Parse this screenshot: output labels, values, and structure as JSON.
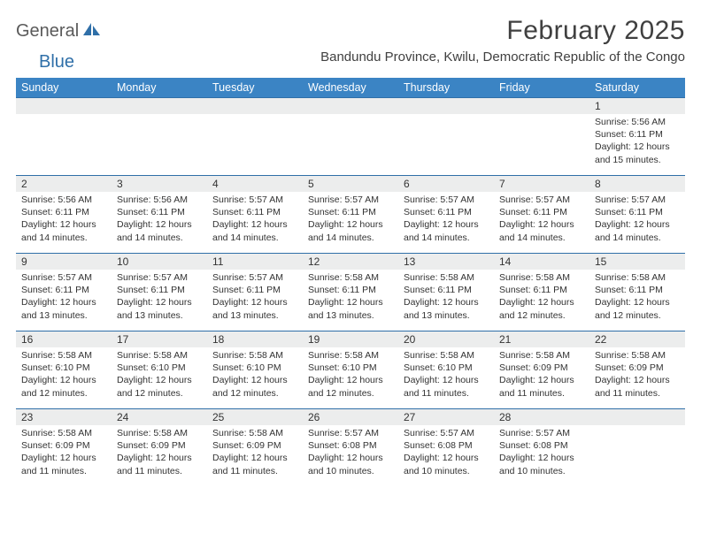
{
  "brand": {
    "part1": "General",
    "part2": "Blue"
  },
  "title": "February 2025",
  "location": "Bandundu Province, Kwilu, Democratic Republic of the Congo",
  "colors": {
    "header_bg": "#3b84c4",
    "header_text": "#ffffff",
    "row_border": "#2f6fa8",
    "daynum_bg": "#eceded",
    "text": "#333333",
    "brand_gray": "#5a5a5a",
    "brand_blue": "#2f6fa8"
  },
  "day_labels": [
    "Sunday",
    "Monday",
    "Tuesday",
    "Wednesday",
    "Thursday",
    "Friday",
    "Saturday"
  ],
  "weeks": [
    [
      null,
      null,
      null,
      null,
      null,
      null,
      {
        "n": "1",
        "sunrise": "5:56 AM",
        "sunset": "6:11 PM",
        "daylight": "12 hours and 15 minutes."
      }
    ],
    [
      {
        "n": "2",
        "sunrise": "5:56 AM",
        "sunset": "6:11 PM",
        "daylight": "12 hours and 14 minutes."
      },
      {
        "n": "3",
        "sunrise": "5:56 AM",
        "sunset": "6:11 PM",
        "daylight": "12 hours and 14 minutes."
      },
      {
        "n": "4",
        "sunrise": "5:57 AM",
        "sunset": "6:11 PM",
        "daylight": "12 hours and 14 minutes."
      },
      {
        "n": "5",
        "sunrise": "5:57 AM",
        "sunset": "6:11 PM",
        "daylight": "12 hours and 14 minutes."
      },
      {
        "n": "6",
        "sunrise": "5:57 AM",
        "sunset": "6:11 PM",
        "daylight": "12 hours and 14 minutes."
      },
      {
        "n": "7",
        "sunrise": "5:57 AM",
        "sunset": "6:11 PM",
        "daylight": "12 hours and 14 minutes."
      },
      {
        "n": "8",
        "sunrise": "5:57 AM",
        "sunset": "6:11 PM",
        "daylight": "12 hours and 14 minutes."
      }
    ],
    [
      {
        "n": "9",
        "sunrise": "5:57 AM",
        "sunset": "6:11 PM",
        "daylight": "12 hours and 13 minutes."
      },
      {
        "n": "10",
        "sunrise": "5:57 AM",
        "sunset": "6:11 PM",
        "daylight": "12 hours and 13 minutes."
      },
      {
        "n": "11",
        "sunrise": "5:57 AM",
        "sunset": "6:11 PM",
        "daylight": "12 hours and 13 minutes."
      },
      {
        "n": "12",
        "sunrise": "5:58 AM",
        "sunset": "6:11 PM",
        "daylight": "12 hours and 13 minutes."
      },
      {
        "n": "13",
        "sunrise": "5:58 AM",
        "sunset": "6:11 PM",
        "daylight": "12 hours and 13 minutes."
      },
      {
        "n": "14",
        "sunrise": "5:58 AM",
        "sunset": "6:11 PM",
        "daylight": "12 hours and 12 minutes."
      },
      {
        "n": "15",
        "sunrise": "5:58 AM",
        "sunset": "6:11 PM",
        "daylight": "12 hours and 12 minutes."
      }
    ],
    [
      {
        "n": "16",
        "sunrise": "5:58 AM",
        "sunset": "6:10 PM",
        "daylight": "12 hours and 12 minutes."
      },
      {
        "n": "17",
        "sunrise": "5:58 AM",
        "sunset": "6:10 PM",
        "daylight": "12 hours and 12 minutes."
      },
      {
        "n": "18",
        "sunrise": "5:58 AM",
        "sunset": "6:10 PM",
        "daylight": "12 hours and 12 minutes."
      },
      {
        "n": "19",
        "sunrise": "5:58 AM",
        "sunset": "6:10 PM",
        "daylight": "12 hours and 12 minutes."
      },
      {
        "n": "20",
        "sunrise": "5:58 AM",
        "sunset": "6:10 PM",
        "daylight": "12 hours and 11 minutes."
      },
      {
        "n": "21",
        "sunrise": "5:58 AM",
        "sunset": "6:09 PM",
        "daylight": "12 hours and 11 minutes."
      },
      {
        "n": "22",
        "sunrise": "5:58 AM",
        "sunset": "6:09 PM",
        "daylight": "12 hours and 11 minutes."
      }
    ],
    [
      {
        "n": "23",
        "sunrise": "5:58 AM",
        "sunset": "6:09 PM",
        "daylight": "12 hours and 11 minutes."
      },
      {
        "n": "24",
        "sunrise": "5:58 AM",
        "sunset": "6:09 PM",
        "daylight": "12 hours and 11 minutes."
      },
      {
        "n": "25",
        "sunrise": "5:58 AM",
        "sunset": "6:09 PM",
        "daylight": "12 hours and 11 minutes."
      },
      {
        "n": "26",
        "sunrise": "5:57 AM",
        "sunset": "6:08 PM",
        "daylight": "12 hours and 10 minutes."
      },
      {
        "n": "27",
        "sunrise": "5:57 AM",
        "sunset": "6:08 PM",
        "daylight": "12 hours and 10 minutes."
      },
      {
        "n": "28",
        "sunrise": "5:57 AM",
        "sunset": "6:08 PM",
        "daylight": "12 hours and 10 minutes."
      },
      null
    ]
  ],
  "labels": {
    "sunrise": "Sunrise:",
    "sunset": "Sunset:",
    "daylight": "Daylight:"
  }
}
